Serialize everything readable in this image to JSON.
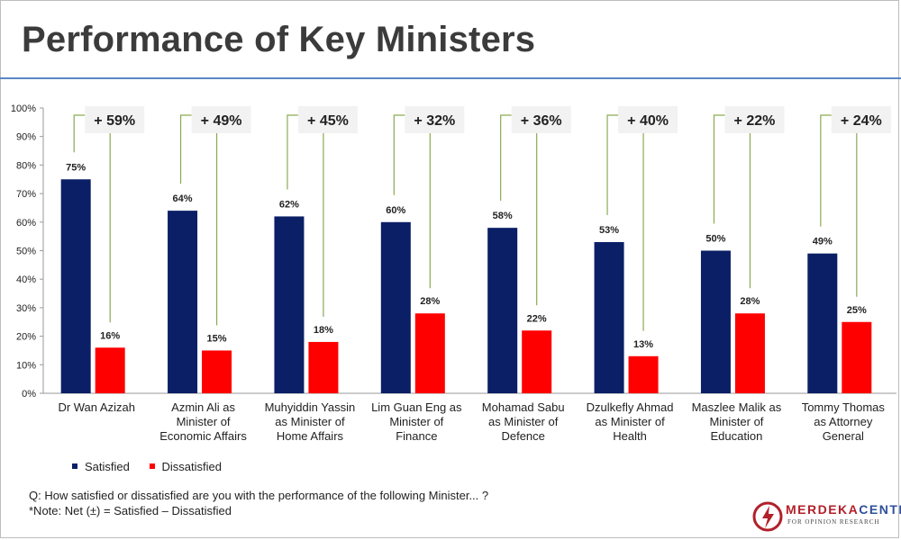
{
  "page": {
    "title": "Performance of Key Ministers",
    "question": "Q: How satisfied or dissatisfied are you with the performance of the following Minister... ?",
    "note": "*Note: Net (±) = Satisfied – Dissatisfied",
    "logo": {
      "name_part1": "MERDEKA",
      "name_part2": "CENTER",
      "tagline": "FOR OPINION RESEARCH"
    }
  },
  "colors": {
    "satisfied": "#0b1f66",
    "dissatisfied": "#ff0000",
    "connector": "#8aab52",
    "net_box": "#f2f2f2",
    "title_rule": "#5b87c5",
    "logo_red": "#b2202a"
  },
  "chart_data": {
    "type": "bar",
    "title": "Performance of Key Ministers",
    "categories": [
      [
        "Dr Wan Azizah"
      ],
      [
        "Azmin Ali as",
        "Minister of",
        "Economic Affairs"
      ],
      [
        "Muhyiddin Yassin",
        "as Minister of",
        "Home Affairs"
      ],
      [
        "Lim Guan Eng as",
        "Minister of",
        "Finance"
      ],
      [
        "Mohamad Sabu",
        "as Minister of",
        "Defence"
      ],
      [
        "Dzulkefly Ahmad",
        "as Minister of",
        "Health"
      ],
      [
        "Maszlee Malik as",
        "Minister of",
        "Education"
      ],
      [
        "Tommy Thomas",
        "as Attorney",
        "General"
      ]
    ],
    "series": [
      {
        "name": "Satisfied",
        "values": [
          75,
          64,
          62,
          60,
          58,
          53,
          50,
          49
        ]
      },
      {
        "name": "Dissatisfied",
        "values": [
          16,
          15,
          18,
          28,
          22,
          13,
          28,
          25
        ]
      }
    ],
    "value_labels": {
      "Satisfied": [
        "75%",
        "64%",
        "62%",
        "60%",
        "58%",
        "53%",
        "50%",
        "49%"
      ],
      "Dissatisfied": [
        "16%",
        "15%",
        "18%",
        "28%",
        "22%",
        "13%",
        "28%",
        "25%"
      ]
    },
    "net": [
      59,
      49,
      45,
      32,
      36,
      40,
      22,
      24
    ],
    "net_labels": [
      "+ 59%",
      "+ 49%",
      "+ 45%",
      "+ 32%",
      "+ 36%",
      "+ 40%",
      "+ 22%",
      "+ 24%"
    ],
    "ylim": [
      0,
      100
    ],
    "yticks": [
      "0%",
      "10%",
      "20%",
      "30%",
      "40%",
      "50%",
      "60%",
      "70%",
      "80%",
      "90%",
      "100%"
    ],
    "ylabel": "",
    "xlabel": "",
    "legend_position": "bottom-left",
    "grid": false
  }
}
